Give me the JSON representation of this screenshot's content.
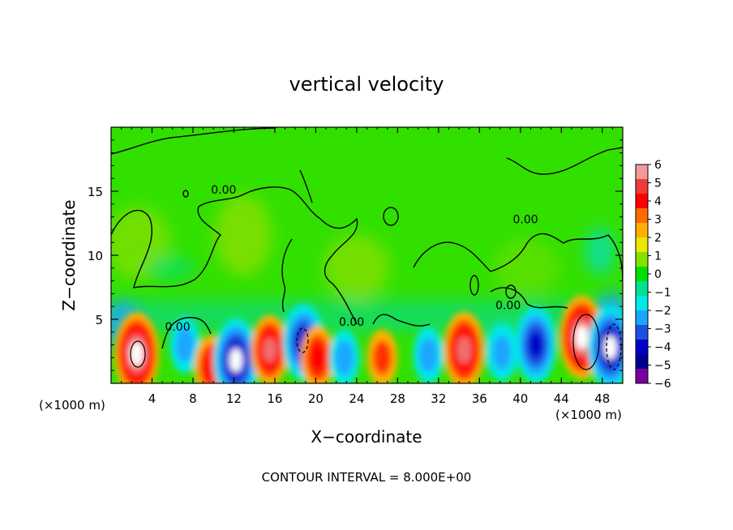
{
  "chart_data": {
    "type": "heatmap",
    "title": "vertical velocity",
    "xlabel": "X−coordinate",
    "ylabel": "Z−coordinate",
    "x_unit_left": "(×1000 m)",
    "x_unit_right": "(×1000 m)",
    "footer": "CONTOUR INTERVAL = 8.000E+00",
    "xlim": [
      0,
      50
    ],
    "ylim": [
      0,
      20
    ],
    "x_ticks": [
      4,
      8,
      12,
      16,
      20,
      24,
      28,
      32,
      36,
      40,
      44,
      48
    ],
    "x_tick_labels": [
      "4",
      "8",
      "12",
      "16",
      "20",
      "24",
      "28",
      "32",
      "36",
      "40",
      "44",
      "48"
    ],
    "y_ticks": [
      5,
      10,
      15
    ],
    "y_tick_labels": [
      "5",
      "10",
      "15"
    ],
    "contour_labels": [
      {
        "text": "0.00",
        "x": 11,
        "y": 14.8
      },
      {
        "text": "0.00",
        "x": 40.5,
        "y": 12.5
      },
      {
        "text": "0.00",
        "x": 6.5,
        "y": 4.1
      },
      {
        "text": "0.00",
        "x": 23.5,
        "y": 4.5
      },
      {
        "text": "0.00",
        "x": 38.8,
        "y": 5.8
      }
    ],
    "colorbar": {
      "values": [
        6,
        5,
        4,
        3,
        2,
        1,
        0,
        -1,
        -2,
        -3,
        -4,
        -5,
        -6
      ],
      "labels": [
        "6",
        "5",
        "4",
        "3",
        "2",
        "1",
        "0",
        "−1",
        "−2",
        "−3",
        "−4",
        "−5",
        "−6"
      ],
      "colors": [
        "#f29a9a",
        "#f03a3a",
        "#ff0000",
        "#ff6a00",
        "#ffb000",
        "#e8e800",
        "#88e000",
        "#00e000",
        "#00e090",
        "#00e8e8",
        "#1aa6ff",
        "#1e50e0",
        "#0000c8",
        "#000090",
        "#7a00a0"
      ]
    },
    "cells": [
      {
        "x": 2.5,
        "y": 2.3,
        "v": 8
      },
      {
        "x": 7.2,
        "y": 3.0,
        "v": -4
      },
      {
        "x": 9.8,
        "y": 1.3,
        "v": 5
      },
      {
        "x": 12.2,
        "y": 1.8,
        "v": -8
      },
      {
        "x": 15.5,
        "y": 2.6,
        "v": 6
      },
      {
        "x": 18.8,
        "y": 3.2,
        "v": -7
      },
      {
        "x": 20.2,
        "y": 2.0,
        "v": 5
      },
      {
        "x": 22.8,
        "y": 2.0,
        "v": -4
      },
      {
        "x": 26.5,
        "y": 2.0,
        "v": 4
      },
      {
        "x": 31.0,
        "y": 2.2,
        "v": -4
      },
      {
        "x": 34.5,
        "y": 2.6,
        "v": 7
      },
      {
        "x": 38.2,
        "y": 2.4,
        "v": -4
      },
      {
        "x": 41.5,
        "y": 3.0,
        "v": -7
      },
      {
        "x": 46.0,
        "y": 3.6,
        "v": 8
      },
      {
        "x": 48.8,
        "y": 2.8,
        "v": -8
      }
    ]
  }
}
